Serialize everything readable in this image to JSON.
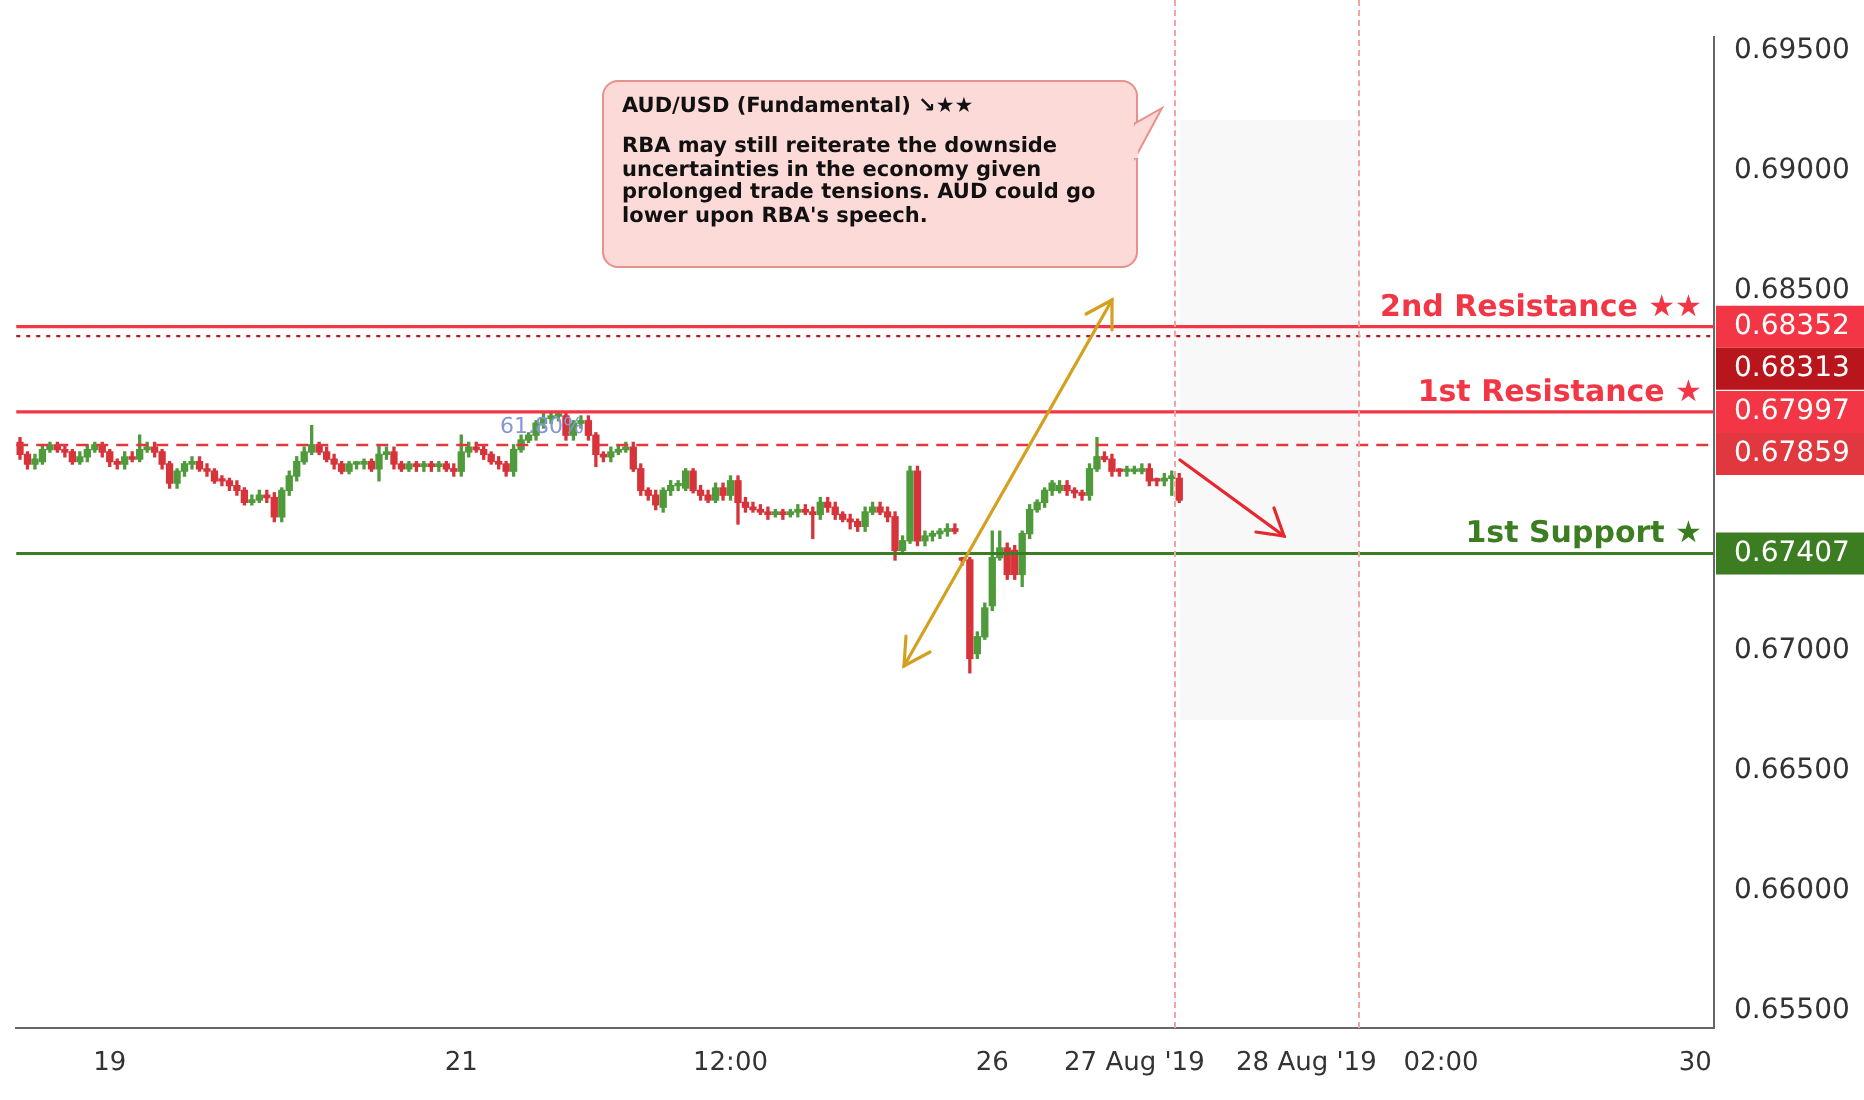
{
  "chart_data": {
    "type": "candlestick",
    "categories": [
      null,
      null,
      null,
      null,
      null,
      null,
      null,
      null,
      null,
      null,
      null,
      null,
      "19",
      null,
      null,
      null,
      null,
      null,
      null,
      null,
      null,
      null,
      null,
      null,
      null,
      null,
      null,
      null,
      null,
      null,
      null,
      null,
      null,
      null,
      null,
      null,
      null,
      null,
      null,
      null,
      null,
      null,
      null,
      null,
      null,
      null,
      null,
      null,
      null,
      null,
      null,
      null,
      null,
      null,
      null,
      null,
      null,
      null,
      null,
      "21",
      null,
      null,
      null,
      null,
      null,
      null,
      null,
      null,
      null,
      null,
      null,
      null,
      null,
      null,
      null,
      null,
      null,
      null,
      null,
      null,
      null,
      null,
      null,
      null,
      null,
      null,
      null,
      null,
      null,
      null,
      null,
      null,
      null,
      null,
      null,
      "12:00",
      null,
      null,
      null,
      null,
      null,
      null,
      null,
      null,
      null,
      null,
      null,
      null,
      null,
      null,
      null,
      null,
      null,
      null,
      null,
      null,
      null,
      null,
      null,
      null,
      null,
      null,
      null,
      null,
      null,
      null,
      null,
      null,
      null,
      null,
      "26",
      null,
      null,
      null,
      null,
      null,
      null,
      null,
      null,
      null,
      null,
      null,
      null,
      null,
      null,
      null,
      null,
      null,
      null,
      "27 Aug '19",
      null,
      null,
      null,
      null,
      null,
      null,
      null,
      null,
      null,
      null,
      null,
      null,
      null,
      null,
      null,
      null,
      null,
      null,
      null,
      null,
      null,
      null,
      "28 Aug '19",
      null,
      null,
      null,
      null,
      null,
      null,
      null,
      null,
      null,
      null,
      null,
      null,
      null,
      null,
      null,
      null,
      null,
      "02:00",
      null,
      null,
      null,
      null,
      null,
      null,
      null,
      null,
      null,
      null,
      null,
      null,
      null,
      null,
      null,
      null,
      null,
      null,
      null,
      null,
      null,
      null,
      null,
      null,
      null,
      null,
      null,
      null,
      null,
      null,
      null,
      null,
      null,
      "30",
      null,
      null
    ],
    "ohlc": [
      [
        0.6787,
        0.6789,
        0.678,
        0.6782
      ],
      [
        0.6782,
        0.6783,
        0.6776,
        0.6778
      ],
      [
        0.6778,
        0.6782,
        0.6776,
        0.678
      ],
      [
        0.6779,
        0.6786,
        0.6778,
        0.6784
      ],
      [
        0.6784,
        0.6787,
        0.6783,
        0.6786
      ],
      [
        0.6786,
        0.6787,
        0.6783,
        0.6784
      ],
      [
        0.6784,
        0.6786,
        0.6781,
        0.6783
      ],
      [
        0.6783,
        0.6784,
        0.6778,
        0.6779
      ],
      [
        0.6779,
        0.6783,
        0.6778,
        0.6781
      ],
      [
        0.6781,
        0.6786,
        0.6779,
        0.6784
      ],
      [
        0.6784,
        0.6787,
        0.6783,
        0.6786
      ],
      [
        0.6786,
        0.6787,
        0.6781,
        0.6783
      ],
      [
        0.6783,
        0.6784,
        0.6777,
        0.6779
      ],
      [
        0.6779,
        0.678,
        0.6776,
        0.6778
      ],
      [
        0.6778,
        0.6783,
        0.6776,
        0.6781
      ],
      [
        0.6781,
        0.6783,
        0.6779,
        0.678
      ],
      [
        0.678,
        0.679,
        0.6779,
        0.6784
      ],
      [
        0.6784,
        0.6787,
        0.6783,
        0.6785
      ],
      [
        0.6785,
        0.6787,
        0.6781,
        0.6783
      ],
      [
        0.6783,
        0.6784,
        0.6776,
        0.6778
      ],
      [
        0.6778,
        0.6779,
        0.6768,
        0.677
      ],
      [
        0.677,
        0.6776,
        0.6768,
        0.6775
      ],
      [
        0.6775,
        0.6779,
        0.6773,
        0.6778
      ],
      [
        0.6778,
        0.6781,
        0.6776,
        0.6779
      ],
      [
        0.6779,
        0.6781,
        0.6775,
        0.6776
      ],
      [
        0.6776,
        0.6778,
        0.6773,
        0.6775
      ],
      [
        0.6775,
        0.6776,
        0.677,
        0.6771
      ],
      [
        0.6771,
        0.6773,
        0.6769,
        0.6771
      ],
      [
        0.6771,
        0.6772,
        0.6767,
        0.6769
      ],
      [
        0.6769,
        0.6771,
        0.6765,
        0.6767
      ],
      [
        0.6767,
        0.6768,
        0.6761,
        0.6762
      ],
      [
        0.6762,
        0.6765,
        0.6761,
        0.6763
      ],
      [
        0.6763,
        0.6767,
        0.6762,
        0.6765
      ],
      [
        0.6765,
        0.6767,
        0.6762,
        0.6764
      ],
      [
        0.6764,
        0.6766,
        0.6754,
        0.6756
      ],
      [
        0.6756,
        0.6768,
        0.6754,
        0.6767
      ],
      [
        0.6767,
        0.6775,
        0.6765,
        0.6773
      ],
      [
        0.6773,
        0.6781,
        0.6771,
        0.6779
      ],
      [
        0.6779,
        0.6785,
        0.6778,
        0.6783
      ],
      [
        0.6783,
        0.6794,
        0.6782,
        0.6786
      ],
      [
        0.6786,
        0.6787,
        0.6782,
        0.6783
      ],
      [
        0.6783,
        0.6785,
        0.6779,
        0.678
      ],
      [
        0.678,
        0.6782,
        0.6776,
        0.6778
      ],
      [
        0.6778,
        0.6779,
        0.6774,
        0.6775
      ],
      [
        0.6775,
        0.6779,
        0.6774,
        0.6778
      ],
      [
        0.6778,
        0.6779,
        0.6776,
        0.6778
      ],
      [
        0.6778,
        0.678,
        0.6776,
        0.6779
      ],
      [
        0.6779,
        0.678,
        0.6775,
        0.6776
      ],
      [
        0.6776,
        0.6786,
        0.6771,
        0.6782
      ],
      [
        0.6782,
        0.6785,
        0.678,
        0.6783
      ],
      [
        0.6783,
        0.6785,
        0.6776,
        0.6778
      ],
      [
        0.6778,
        0.6779,
        0.6775,
        0.6776
      ],
      [
        0.6776,
        0.6779,
        0.6775,
        0.6778
      ],
      [
        0.6778,
        0.6779,
        0.6775,
        0.6777
      ],
      [
        0.6777,
        0.6779,
        0.6775,
        0.6778
      ],
      [
        0.6778,
        0.6779,
        0.6775,
        0.6777
      ],
      [
        0.6777,
        0.6779,
        0.6775,
        0.6778
      ],
      [
        0.6778,
        0.6779,
        0.6775,
        0.6776
      ],
      [
        0.6776,
        0.6778,
        0.6773,
        0.6775
      ],
      [
        0.6775,
        0.679,
        0.6773,
        0.6783
      ],
      [
        0.6783,
        0.6787,
        0.6781,
        0.6785
      ],
      [
        0.6785,
        0.6787,
        0.6783,
        0.6784
      ],
      [
        0.6784,
        0.6786,
        0.678,
        0.6782
      ],
      [
        0.6782,
        0.6783,
        0.6778,
        0.6779
      ],
      [
        0.6779,
        0.6781,
        0.6776,
        0.6778
      ],
      [
        0.6778,
        0.6779,
        0.6773,
        0.6775
      ],
      [
        0.6775,
        0.6786,
        0.6773,
        0.6784
      ],
      [
        0.6784,
        0.679,
        0.6783,
        0.6788
      ],
      [
        0.6788,
        0.6791,
        0.6787,
        0.679
      ],
      [
        0.679,
        0.6796,
        0.6788,
        0.6795
      ],
      [
        0.6795,
        0.6799,
        0.6793,
        0.6797
      ],
      [
        0.6797,
        0.6799,
        0.6795,
        0.6798
      ],
      [
        0.6798,
        0.6799,
        0.6796,
        0.6798
      ],
      [
        0.6798,
        0.6799,
        0.6788,
        0.679
      ],
      [
        0.679,
        0.6796,
        0.6788,
        0.6795
      ],
      [
        0.6795,
        0.6798,
        0.6793,
        0.6796
      ],
      [
        0.6796,
        0.6798,
        0.6788,
        0.679
      ],
      [
        0.679,
        0.6791,
        0.6777,
        0.6782
      ],
      [
        0.6782,
        0.6783,
        0.6779,
        0.6781
      ],
      [
        0.6781,
        0.6785,
        0.6779,
        0.6783
      ],
      [
        0.6783,
        0.6786,
        0.6782,
        0.6784
      ],
      [
        0.6784,
        0.6787,
        0.6783,
        0.6785
      ],
      [
        0.6785,
        0.6787,
        0.6775,
        0.6776
      ],
      [
        0.6776,
        0.6778,
        0.6765,
        0.6767
      ],
      [
        0.6767,
        0.6768,
        0.6763,
        0.6765
      ],
      [
        0.6765,
        0.6767,
        0.6759,
        0.6761
      ],
      [
        0.676,
        0.6768,
        0.6758,
        0.6767
      ],
      [
        0.6767,
        0.6771,
        0.6765,
        0.6769
      ],
      [
        0.6769,
        0.6771,
        0.6767,
        0.6769
      ],
      [
        0.6768,
        0.6776,
        0.6767,
        0.6775
      ],
      [
        0.6775,
        0.6776,
        0.6766,
        0.6767
      ],
      [
        0.6767,
        0.6769,
        0.6763,
        0.6765
      ],
      [
        0.6765,
        0.6767,
        0.6762,
        0.6763
      ],
      [
        0.6763,
        0.677,
        0.6762,
        0.6768
      ],
      [
        0.6768,
        0.677,
        0.6763,
        0.6765
      ],
      [
        0.6765,
        0.6773,
        0.6763,
        0.6771
      ],
      [
        0.6771,
        0.6773,
        0.6753,
        0.6762
      ],
      [
        0.6762,
        0.6764,
        0.6758,
        0.676
      ],
      [
        0.676,
        0.6762,
        0.6758,
        0.6759
      ],
      [
        0.6759,
        0.6761,
        0.6757,
        0.6758
      ],
      [
        0.6758,
        0.676,
        0.6755,
        0.6757
      ],
      [
        0.6757,
        0.6759,
        0.6756,
        0.6758
      ],
      [
        0.6758,
        0.6759,
        0.6755,
        0.6757
      ],
      [
        0.6757,
        0.6759,
        0.6756,
        0.6758
      ],
      [
        0.6758,
        0.6761,
        0.6756,
        0.6759
      ],
      [
        0.6759,
        0.6761,
        0.6757,
        0.6758
      ],
      [
        0.6758,
        0.676,
        0.6747,
        0.6757
      ],
      [
        0.6757,
        0.6764,
        0.6755,
        0.6762
      ],
      [
        0.6762,
        0.6764,
        0.6758,
        0.676
      ],
      [
        0.676,
        0.6762,
        0.6755,
        0.6757
      ],
      [
        0.6757,
        0.6758,
        0.6754,
        0.6755
      ],
      [
        0.6755,
        0.6757,
        0.6751,
        0.6754
      ],
      [
        0.6754,
        0.6755,
        0.675,
        0.6752
      ],
      [
        0.6752,
        0.676,
        0.675,
        0.6758
      ],
      [
        0.6758,
        0.6762,
        0.6757,
        0.676
      ],
      [
        0.676,
        0.6762,
        0.6757,
        0.6758
      ],
      [
        0.6758,
        0.676,
        0.6754,
        0.6756
      ],
      [
        0.6756,
        0.6758,
        0.6738,
        0.6742
      ],
      [
        0.6742,
        0.6748,
        0.6741,
        0.6746
      ],
      [
        0.6746,
        0.6777,
        0.6745,
        0.6775
      ],
      [
        0.6775,
        0.6777,
        0.6744,
        0.6746
      ],
      [
        0.6746,
        0.675,
        0.6744,
        0.6748
      ],
      [
        0.6748,
        0.675,
        0.6746,
        0.6749
      ],
      [
        0.6749,
        0.6751,
        0.6747,
        0.675
      ],
      [
        0.675,
        0.6753,
        0.6748,
        0.6751
      ],
      [
        0.6751,
        0.6753,
        0.6749,
        0.675
      ],
      [
        0.6738,
        0.6739,
        0.6736,
        0.6738
      ],
      [
        0.6738,
        0.6739,
        0.6691,
        0.6697
      ],
      [
        0.6699,
        0.6708,
        0.6697,
        0.6706
      ],
      [
        0.6706,
        0.672,
        0.6705,
        0.6718
      ],
      [
        0.6719,
        0.675,
        0.6717,
        0.6739
      ],
      [
        0.6739,
        0.675,
        0.6738,
        0.6743
      ],
      [
        0.6743,
        0.6745,
        0.673,
        0.6732
      ],
      [
        0.6742,
        0.6744,
        0.673,
        0.6732
      ],
      [
        0.6732,
        0.675,
        0.6727,
        0.6749
      ],
      [
        0.6749,
        0.6761,
        0.6747,
        0.6759
      ],
      [
        0.6759,
        0.6763,
        0.6758,
        0.6762
      ],
      [
        0.6762,
        0.6768,
        0.676,
        0.6767
      ],
      [
        0.6767,
        0.6771,
        0.6765,
        0.677
      ],
      [
        0.6767,
        0.6771,
        0.6766,
        0.6769
      ],
      [
        0.6769,
        0.6771,
        0.6765,
        0.6767
      ],
      [
        0.6767,
        0.6768,
        0.6764,
        0.6766
      ],
      [
        0.6766,
        0.6767,
        0.6763,
        0.6765
      ],
      [
        0.6765,
        0.6778,
        0.6763,
        0.6776
      ],
      [
        0.6776,
        0.6789,
        0.6775,
        0.6781
      ],
      [
        0.6781,
        0.6783,
        0.6779,
        0.678
      ],
      [
        0.678,
        0.6782,
        0.6773,
        0.6775
      ],
      [
        0.6775,
        0.6776,
        0.6773,
        0.6775
      ],
      [
        0.6775,
        0.6777,
        0.6773,
        0.6775
      ],
      [
        0.6775,
        0.6777,
        0.6774,
        0.6775
      ],
      [
        0.6775,
        0.6778,
        0.6774,
        0.6776
      ],
      [
        0.6776,
        0.6778,
        0.6769,
        0.6771
      ],
      [
        0.6771,
        0.6772,
        0.6769,
        0.6771
      ],
      [
        0.6771,
        0.6774,
        0.6769,
        0.6772
      ],
      [
        0.6772,
        0.6775,
        0.6765,
        0.6773
      ],
      [
        0.6772,
        0.6774,
        0.6762,
        0.6763
      ],
      null,
      null,
      null,
      null,
      null,
      null,
      null,
      null,
      null,
      null,
      null,
      null,
      null,
      null,
      null,
      null,
      null,
      null,
      null,
      null,
      null,
      null,
      null,
      null,
      null,
      null,
      null,
      null,
      null,
      null,
      null,
      null,
      null,
      null,
      null,
      null,
      null,
      null,
      null,
      null,
      null,
      null,
      null,
      null,
      null,
      null,
      null,
      null,
      null,
      null,
      null,
      null,
      null,
      null,
      null,
      null,
      null,
      null,
      null,
      null,
      null,
      null,
      null,
      null,
      null,
      null,
      null,
      null,
      null,
      null,
      null
    ],
    "colors": [
      "#d6333a",
      "#d6333a",
      "#4f9a3b",
      "#4f9a3b",
      "#4f9a3b",
      "#d6333a",
      "#d6333a",
      "#d6333a",
      "#4f9a3b",
      "#4f9a3b",
      "#4f9a3b",
      "#d6333a",
      "#d6333a",
      "#d6333a",
      "#4f9a3b",
      "#d6333a",
      "#4f9a3b",
      "#4f9a3b",
      "#d6333a",
      "#d6333a",
      "#d6333a",
      "#4f9a3b",
      "#4f9a3b",
      "#4f9a3b",
      "#d6333a",
      "#d6333a",
      "#d6333a",
      "#d6333a",
      "#d6333a",
      "#d6333a",
      "#d6333a",
      "#4f9a3b",
      "#4f9a3b",
      "#d6333a",
      "#d6333a",
      "#4f9a3b",
      "#4f9a3b",
      "#4f9a3b",
      "#4f9a3b",
      "#4f9a3b",
      "#d6333a",
      "#d6333a",
      "#d6333a",
      "#d6333a",
      "#4f9a3b",
      "#4f9a3b",
      "#4f9a3b",
      "#d6333a",
      "#4f9a3b",
      "#4f9a3b",
      "#d6333a",
      "#d6333a",
      "#4f9a3b",
      "#d6333a",
      "#4f9a3b",
      "#d6333a",
      "#4f9a3b",
      "#d6333a",
      "#d6333a",
      "#4f9a3b",
      "#4f9a3b",
      "#d6333a",
      "#d6333a",
      "#d6333a",
      "#d6333a",
      "#d6333a",
      "#4f9a3b",
      "#4f9a3b",
      "#4f9a3b",
      "#4f9a3b",
      "#4f9a3b",
      "#4f9a3b",
      "#4f9a3b",
      "#d6333a",
      "#4f9a3b",
      "#4f9a3b",
      "#d6333a",
      "#d6333a",
      "#d6333a",
      "#4f9a3b",
      "#4f9a3b",
      "#4f9a3b",
      "#d6333a",
      "#d6333a",
      "#d6333a",
      "#d6333a",
      "#4f9a3b",
      "#4f9a3b",
      "#4f9a3b",
      "#4f9a3b",
      "#d6333a",
      "#d6333a",
      "#d6333a",
      "#4f9a3b",
      "#d6333a",
      "#4f9a3b",
      "#d6333a",
      "#d6333a",
      "#d6333a",
      "#d6333a",
      "#d6333a",
      "#4f9a3b",
      "#d6333a",
      "#4f9a3b",
      "#4f9a3b",
      "#d6333a",
      "#d6333a",
      "#4f9a3b",
      "#d6333a",
      "#d6333a",
      "#d6333a",
      "#d6333a",
      "#d6333a",
      "#4f9a3b",
      "#4f9a3b",
      "#d6333a",
      "#d6333a",
      "#d6333a",
      "#4f9a3b",
      "#4f9a3b",
      "#d6333a",
      "#4f9a3b",
      "#4f9a3b",
      "#4f9a3b",
      "#4f9a3b",
      "#d6333a",
      "#d6333a",
      "#d6333a",
      "#4f9a3b",
      "#4f9a3b",
      "#4f9a3b",
      "#4f9a3b",
      "#d6333a",
      "#d6333a",
      "#4f9a3b",
      "#4f9a3b",
      "#4f9a3b",
      "#4f9a3b",
      "#4f9a3b",
      "#4f9a3b",
      "#d6333a",
      "#d6333a",
      "#d6333a",
      "#4f9a3b",
      "#4f9a3b",
      "#d6333a",
      "#d6333a",
      "#d6333a",
      "#4f9a3b",
      "#4f9a3b",
      "#4f9a3b",
      "#d6333a",
      "#d6333a",
      "#4f9a3b",
      "#4f9a3b",
      "#d6333a",
      null,
      null,
      null,
      null,
      null,
      null,
      null,
      null,
      null,
      null,
      null,
      null,
      null,
      null,
      null,
      null,
      null,
      null,
      null,
      null,
      null,
      null,
      null,
      null,
      null,
      null,
      null,
      null,
      null,
      null,
      null,
      null,
      null,
      null,
      null,
      null,
      null,
      null,
      null,
      null,
      null,
      null,
      null,
      null,
      null,
      null,
      null,
      null,
      null,
      null,
      null,
      null,
      null,
      null,
      null,
      null,
      null,
      null,
      null,
      null,
      null,
      null,
      null,
      null,
      null,
      null,
      null,
      null,
      null,
      null,
      null
    ],
    "ylim": [
      0.6543,
      0.6956
    ],
    "yticks": [
      {
        "value": 0.655,
        "label": "0.65500"
      },
      {
        "value": 0.66,
        "label": "0.66000"
      },
      {
        "value": 0.665,
        "label": "0.66500"
      },
      {
        "value": 0.67,
        "label": "0.67000"
      },
      {
        "value": 0.685,
        "label": "0.68500"
      },
      {
        "value": 0.69,
        "label": "0.69000"
      },
      {
        "value": 0.695,
        "label": "0.69500"
      }
    ],
    "ref_lines": [
      {
        "axis": "y",
        "value": 0.68352,
        "label": "2nd Resistance ★★",
        "color": "#f23645",
        "line_style": "solid"
      },
      {
        "axis": "y",
        "value": 0.68313,
        "color": "#b8161c",
        "line_style": "dotted"
      },
      {
        "axis": "y",
        "value": 0.67997,
        "label": "1st Resistance ★",
        "color": "#f23645",
        "line_style": "solid"
      },
      {
        "axis": "y",
        "value": 0.67859,
        "color": "#e0383e",
        "line_style": "dashed"
      },
      {
        "axis": "y",
        "value": 0.67407,
        "label": "1st Support ★",
        "color": "#3c7d22",
        "line_style": "solid"
      }
    ],
    "annotations": [
      "AUD/USD (Fundamental) ↘★★",
      "RBA may still reiterate the downside uncertainties in the economy given prolonged trade tensions. AUD could go lower upon RBA's speech.",
      {
        "text": "61.80%",
        "y": 0.6786
      },
      "0.68352",
      "0.68313",
      "0.67997",
      "0.67859",
      "0.67407"
    ]
  }
}
